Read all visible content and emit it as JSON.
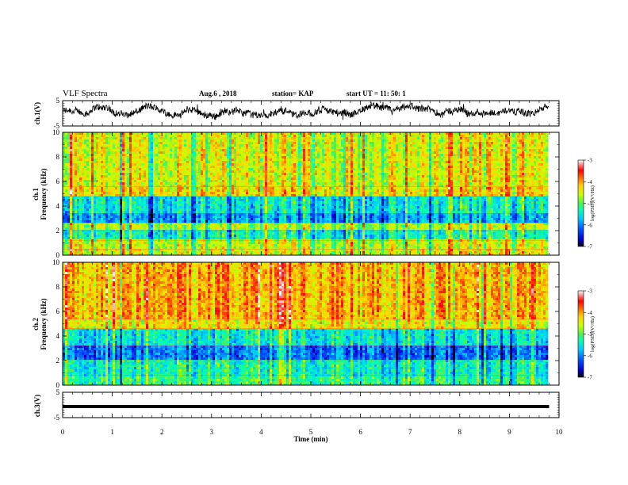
{
  "header": {
    "title": "VLF Spectra",
    "date": "Aug.6  , 2018",
    "station": "station= KAP",
    "start": "start  UT  =   11: 50: 1"
  },
  "colors": {
    "scale": [
      "#000000",
      "#0000c8",
      "#0050ff",
      "#00c8ff",
      "#00ffb4",
      "#50f050",
      "#c8ff00",
      "#ffd200",
      "#ff6400",
      "#ff0000",
      "#ff8c8c",
      "#ffffff"
    ]
  },
  "chart_data": [
    {
      "type": "line",
      "ylabel": "ch.1(V)",
      "ylim": [
        -5,
        5
      ],
      "yticks": [
        "5",
        "-5"
      ],
      "xlim": [
        0,
        10
      ],
      "approx_mean_v": 0.5,
      "approx_swing_v": [
        -3.5,
        4.5
      ],
      "data_end_min": 9.8
    },
    {
      "type": "heatmap",
      "ylabel": "ch.1\nFrequency  (kHz)",
      "ylim": [
        0,
        10
      ],
      "yticks": [
        "0",
        "2",
        "4",
        "6",
        "8",
        "10"
      ],
      "xlim": [
        0,
        10
      ],
      "data_end_min": 9.8,
      "colorbar": {
        "range": [
          -7,
          -3
        ],
        "ticks": [
          "-3",
          "-4",
          "-5",
          "-6",
          "-7"
        ],
        "label": "log(PSD)(V²/Hz)"
      },
      "bands_khz": [
        {
          "from": 0,
          "to": 0.5,
          "level": -4.5
        },
        {
          "from": 0.5,
          "to": 1.2,
          "level": -4.6
        },
        {
          "from": 1.2,
          "to": 2.0,
          "level": -5.4
        },
        {
          "from": 2.0,
          "to": 2.6,
          "level": -4.7
        },
        {
          "from": 2.6,
          "to": 3.4,
          "level": -5.9
        },
        {
          "from": 3.4,
          "to": 4.8,
          "level": -5.5
        },
        {
          "from": 4.8,
          "to": 5.6,
          "level": -4.3
        },
        {
          "from": 5.6,
          "to": 10,
          "level": -4.5
        }
      ]
    },
    {
      "type": "heatmap",
      "ylabel": "ch.2\nFrequency  (kHz)",
      "ylim": [
        0,
        10
      ],
      "yticks": [
        "0",
        "2",
        "4",
        "6",
        "8",
        "10"
      ],
      "xlim": [
        0,
        10
      ],
      "data_end_min": 9.8,
      "colorbar": {
        "range": [
          -7,
          -3
        ],
        "ticks": [
          "-3",
          "-4",
          "-5",
          "-6",
          "-7"
        ],
        "label": "log(PSD)(V²/Hz)"
      },
      "bands_khz": [
        {
          "from": 0,
          "to": 0.8,
          "level": -5.2
        },
        {
          "from": 0.8,
          "to": 2.0,
          "level": -5.4
        },
        {
          "from": 2.0,
          "to": 3.2,
          "level": -6.1
        },
        {
          "from": 3.2,
          "to": 4.6,
          "level": -5.5
        },
        {
          "from": 4.6,
          "to": 5.4,
          "level": -4.4
        },
        {
          "from": 5.4,
          "to": 10,
          "level": -4.1
        }
      ]
    },
    {
      "type": "line",
      "ylabel": "ch.3(V)",
      "ylim": [
        -5,
        5
      ],
      "yticks": [
        "5",
        "-5"
      ],
      "xlim": [
        0,
        10
      ],
      "constant_v": 0,
      "data_end_min": 9.8
    }
  ],
  "xaxis": {
    "label": "Time  (min)",
    "ticks": [
      "0",
      "1",
      "2",
      "3",
      "4",
      "5",
      "6",
      "7",
      "8",
      "9",
      "10"
    ]
  }
}
